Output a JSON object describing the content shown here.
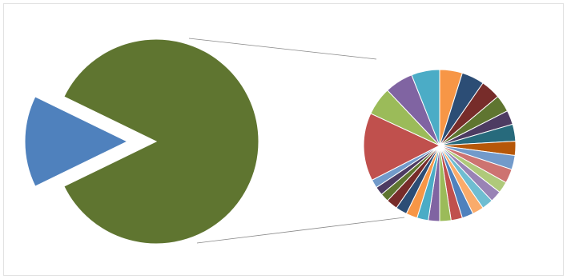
{
  "chart_data": [
    {
      "type": "pie",
      "values": [
        14,
        83
      ],
      "colors": [
        "#4f81bd",
        "#5f7530"
      ]
    },
    {
      "type": "pie",
      "values": [
        4,
        4,
        3.5,
        3,
        2.5,
        3,
        2.5,
        2.5,
        2.5,
        2,
        2,
        2,
        2,
        2,
        2,
        2,
        2,
        2,
        2,
        2,
        2,
        1.5,
        1.5,
        1.5,
        12,
        5,
        5,
        5
      ],
      "colors": [
        "#f79646",
        "#2c4d75",
        "#772c2a",
        "#5f7530",
        "#4d3b62",
        "#276a7c",
        "#b65708",
        "#729aca",
        "#cd7371",
        "#afc97a",
        "#9983b5",
        "#6fbdd1",
        "#f9ab6b",
        "#4f81bd",
        "#c0504d",
        "#9bbb59",
        "#8064a2",
        "#4bacc6",
        "#f79646",
        "#2c4d75",
        "#772c2a",
        "#5f7530",
        "#4d3b62",
        "#729aca",
        "#c0504d",
        "#9bbb59",
        "#8064a2",
        "#4bacc6"
      ]
    }
  ]
}
